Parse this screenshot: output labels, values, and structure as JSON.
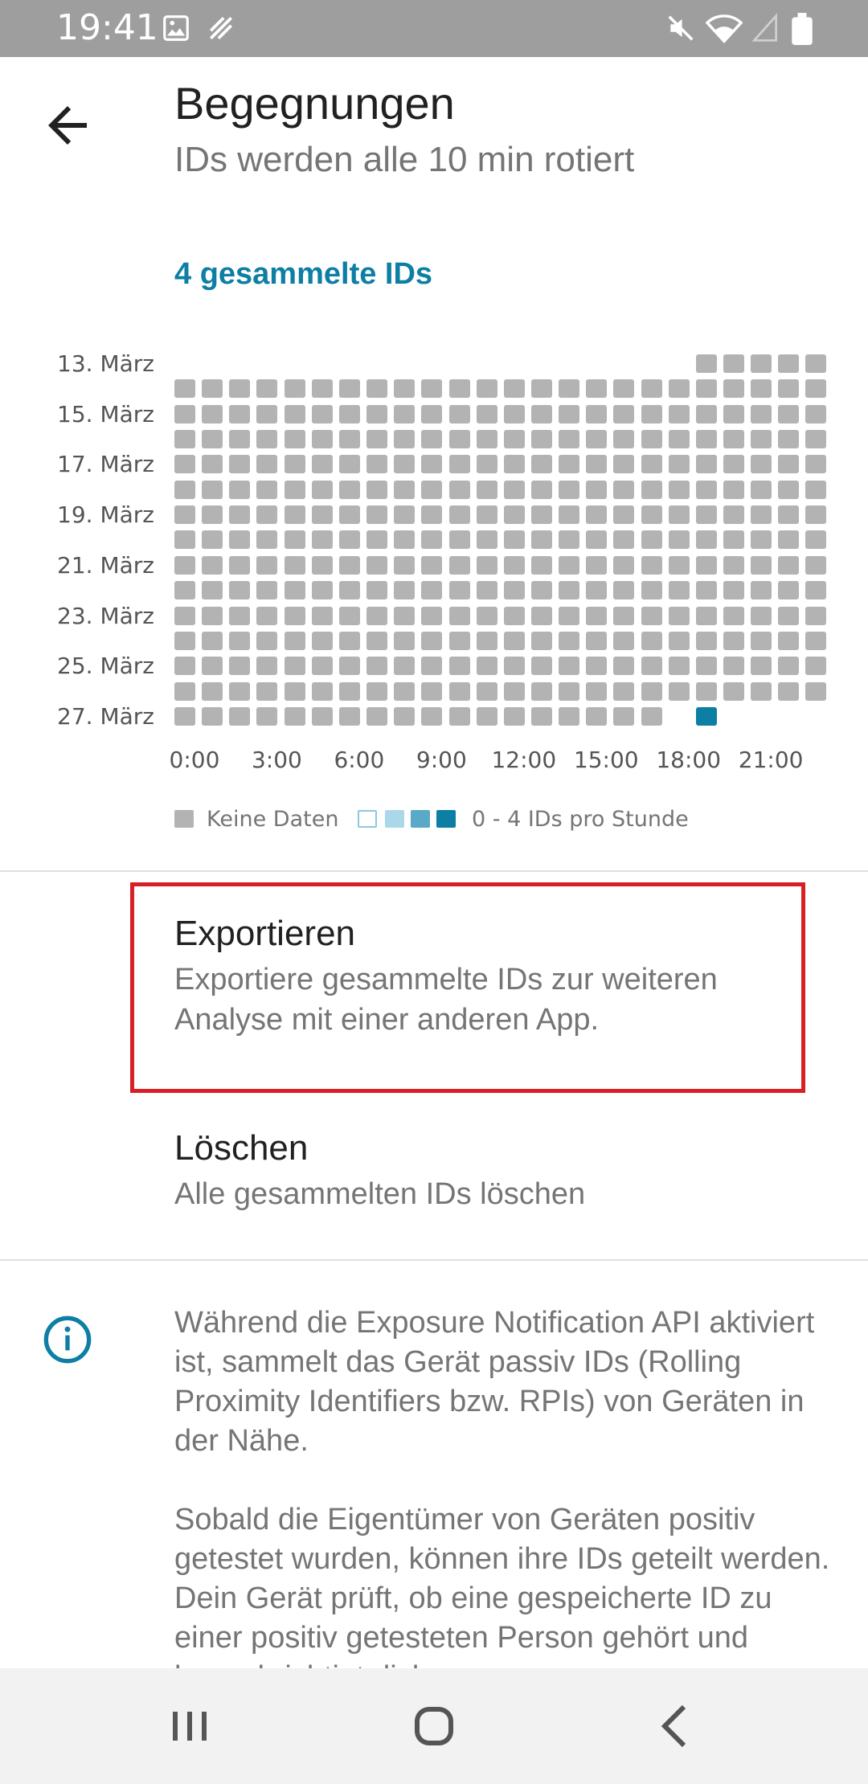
{
  "status_bar": {
    "time": "19:41",
    "icons": [
      "image-icon",
      "data-saver-icon",
      "mute-icon",
      "wifi-icon",
      "signal-icon",
      "battery-icon"
    ]
  },
  "header": {
    "title": "Begegnungen",
    "subtitle": "IDs werden alle 10 min rotiert",
    "back_icon": "arrow-back-icon"
  },
  "summary": {
    "count_label": "4 gesammelte IDs",
    "accent_color": "#0d7ea4"
  },
  "chart_data": {
    "type": "heatmap",
    "y_labels": [
      "13. März",
      "15. März",
      "17. März",
      "19. März",
      "21. März",
      "23. März",
      "25. März",
      "27. März"
    ],
    "days": [
      "13. März",
      "14. März",
      "15. März",
      "16. März",
      "17. März",
      "18. März",
      "19. März",
      "20. März",
      "21. März",
      "22. März",
      "23. März",
      "24. März",
      "25. März",
      "26. März",
      "27. März"
    ],
    "x_labels": [
      "0:00",
      "3:00",
      "6:00",
      "9:00",
      "12:00",
      "15:00",
      "18:00",
      "21:00"
    ],
    "hours": 24,
    "first_day_start_hour": 19,
    "last_day_end_hour": 20,
    "cells": [
      {
        "day": "27. März",
        "hour": 19,
        "ids": 4
      }
    ],
    "no_data_hours": {
      "27. März": [
        18
      ]
    },
    "colors": {
      "no_data": "#b3b3b3",
      "scale": [
        "#ffffff",
        "#aad8e8",
        "#5aa9c8",
        "#0d7ea4"
      ]
    },
    "legend": {
      "no_data_label": "Keine Daten",
      "scale_label": "0 - 4 IDs pro Stunde"
    }
  },
  "actions": {
    "export": {
      "title": "Exportieren",
      "description": "Exportiere gesammelte IDs zur weiteren Analyse mit einer anderen App."
    },
    "delete": {
      "title": "Löschen",
      "description": "Alle gesammelten IDs löschen"
    }
  },
  "info": {
    "icon": "info-icon",
    "paragraph1": "Während die Exposure Notification API aktiviert ist, sammelt das Gerät passiv IDs (Rolling Proximity Identifiers bzw. RPIs) von Geräten in der Nähe.",
    "paragraph2": "Sobald die Eigentümer von Geräten positiv getestet wurden, können ihre IDs geteilt werden. Dein Gerät prüft, ob eine gespeicherte ID zu einer positiv getesteten Person gehört und benachrichtigt dich."
  },
  "nav_bar": {
    "recents_icon": "recents-icon",
    "home_icon": "home-icon",
    "back_icon": "nav-back-icon"
  }
}
